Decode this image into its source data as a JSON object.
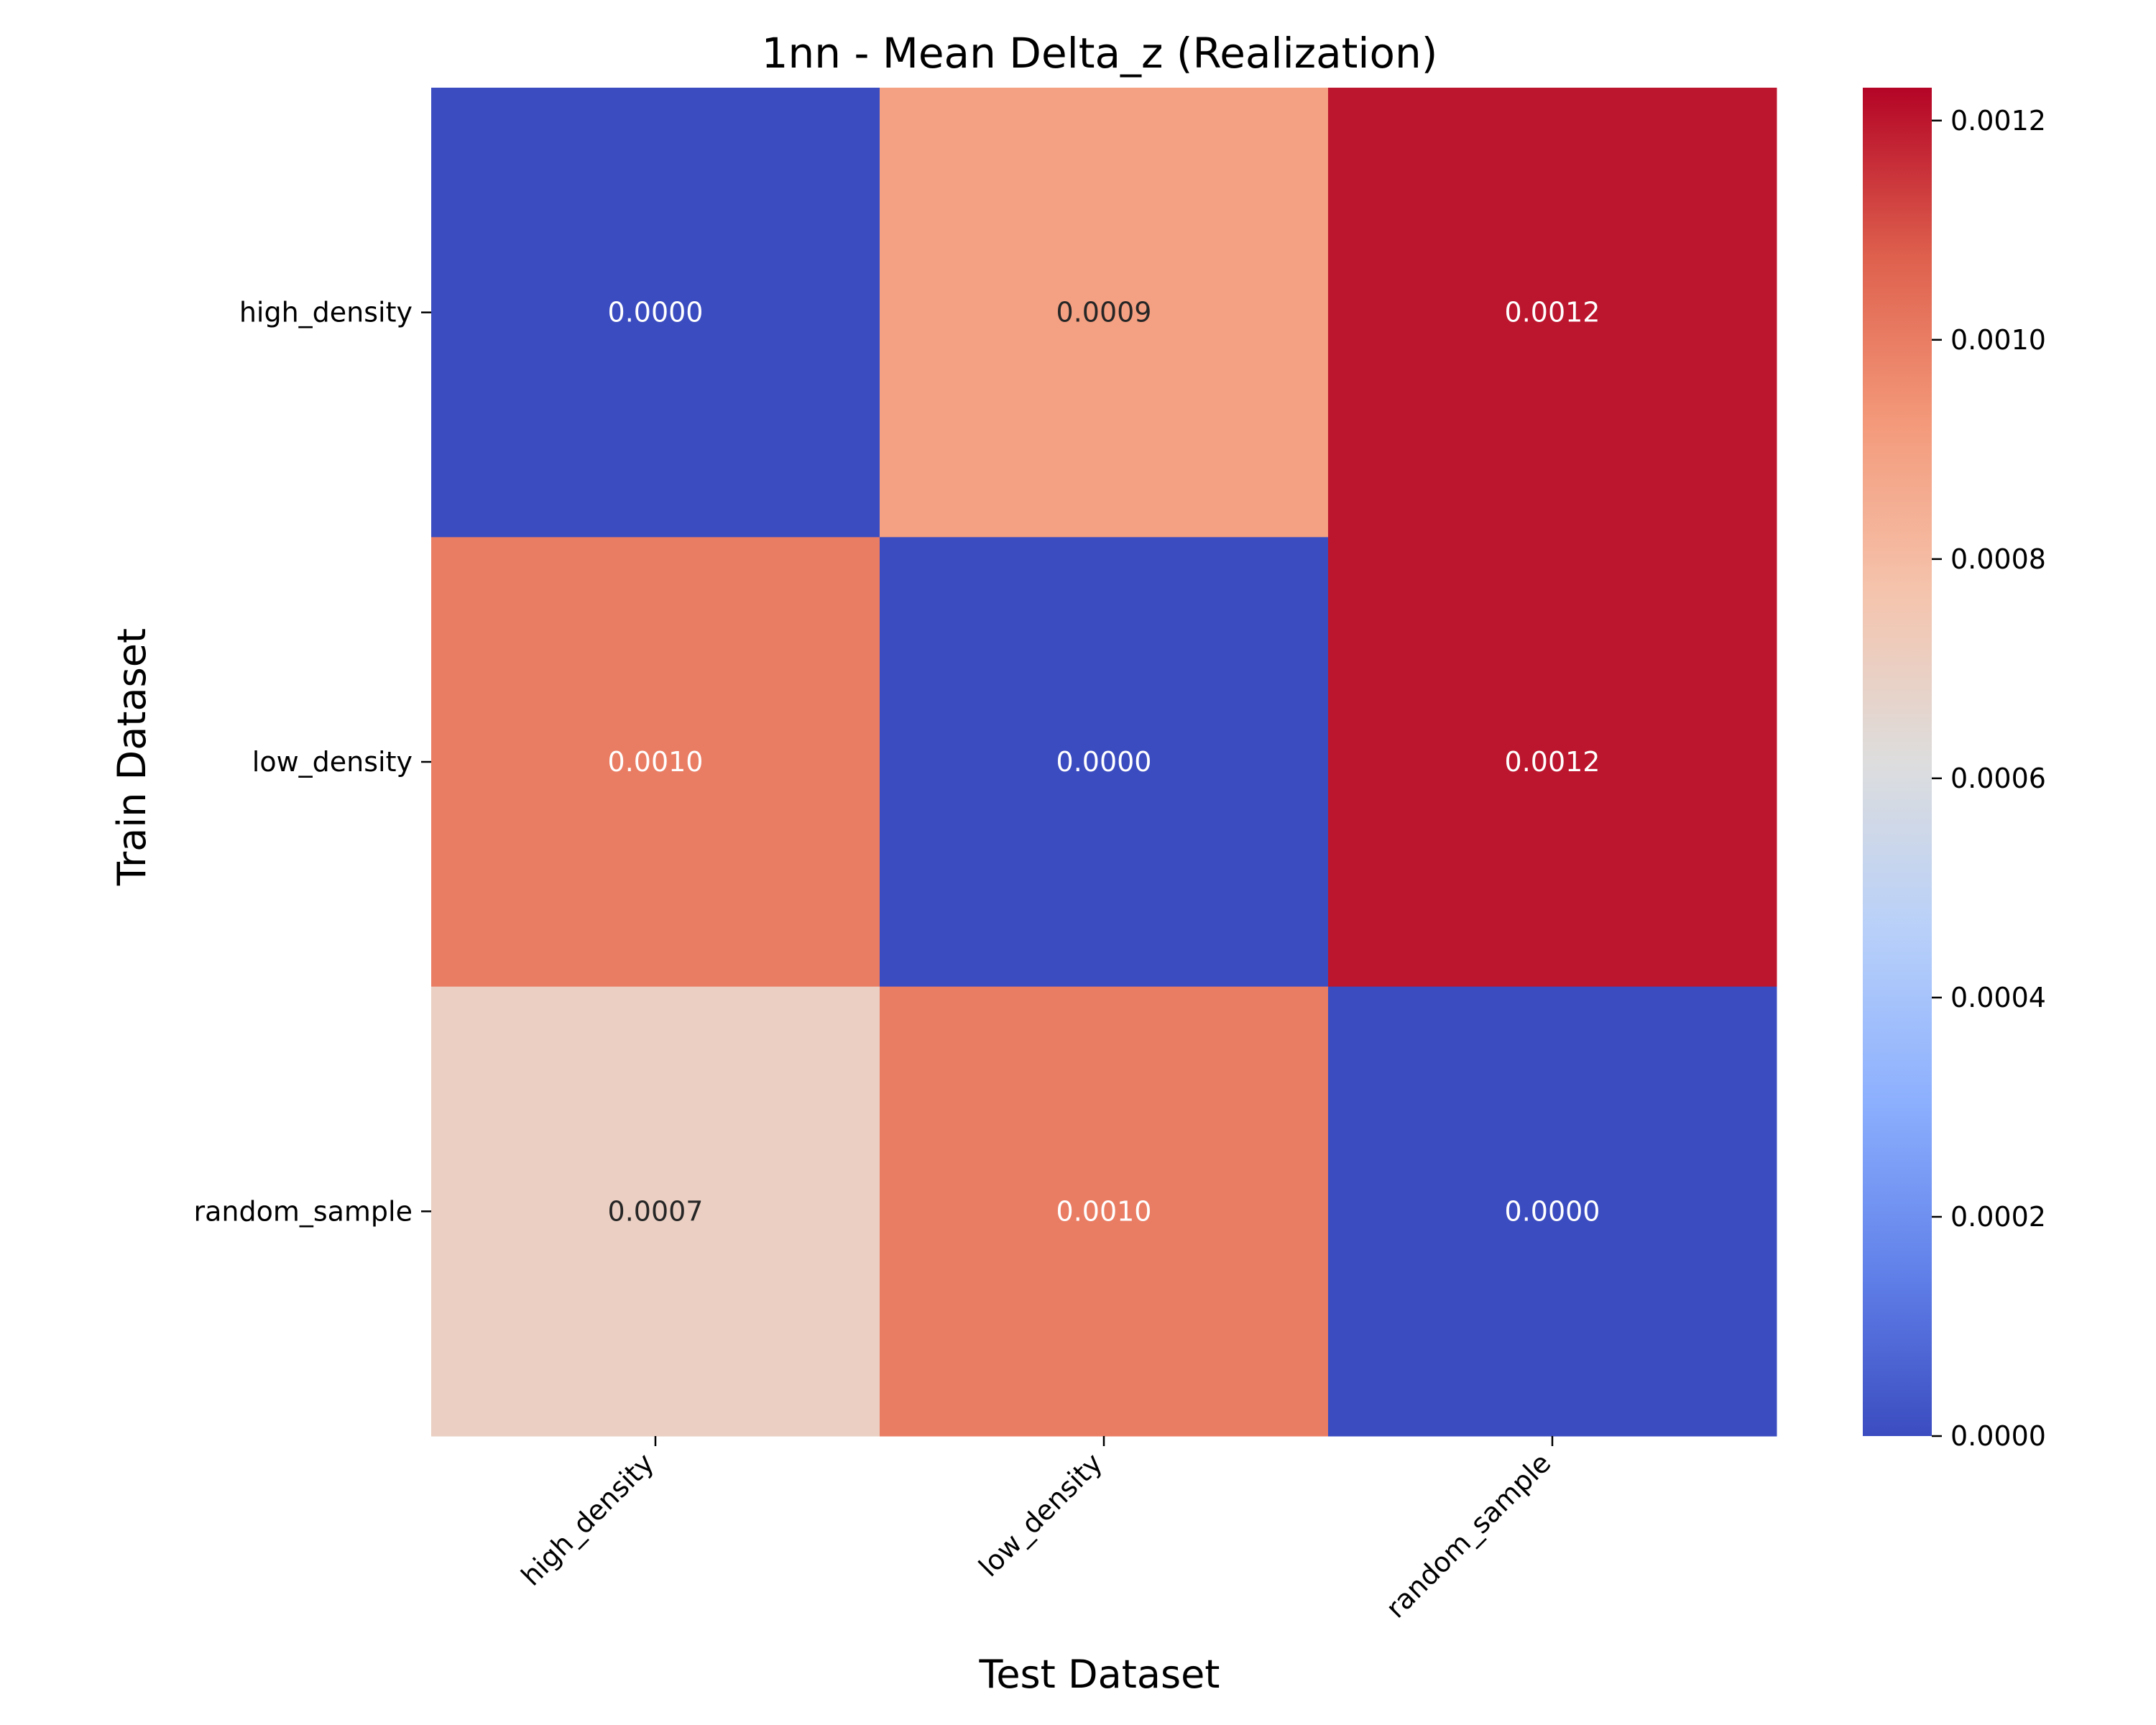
{
  "chart_data": {
    "type": "heatmap",
    "title": "1nn - Mean Delta_z (Realization)",
    "xlabel": "Test Dataset",
    "ylabel": "Train Dataset",
    "x_categories": [
      "high_density",
      "low_density",
      "random_sample"
    ],
    "y_categories": [
      "high_density",
      "low_density",
      "random_sample"
    ],
    "values": [
      [
        0.0,
        0.0009,
        0.0012
      ],
      [
        0.001,
        0.0,
        0.0012
      ],
      [
        0.0007,
        0.001,
        0.0
      ]
    ],
    "cell_labels": [
      [
        "0.0000",
        "0.0009",
        "0.0012"
      ],
      [
        "0.0010",
        "0.0000",
        "0.0012"
      ],
      [
        "0.0007",
        "0.0010",
        "0.0000"
      ]
    ],
    "colormap": "coolwarm",
    "colorbar": {
      "range": [
        0.0,
        0.00123
      ],
      "ticks": [
        0.0,
        0.0002,
        0.0004,
        0.0006,
        0.0008,
        0.001,
        0.0012
      ],
      "tick_labels": [
        "0.0000",
        "0.0002",
        "0.0004",
        "0.0006",
        "0.0008",
        "0.0010",
        "0.0012"
      ]
    },
    "x_tick_rotation": "45 degrees"
  }
}
